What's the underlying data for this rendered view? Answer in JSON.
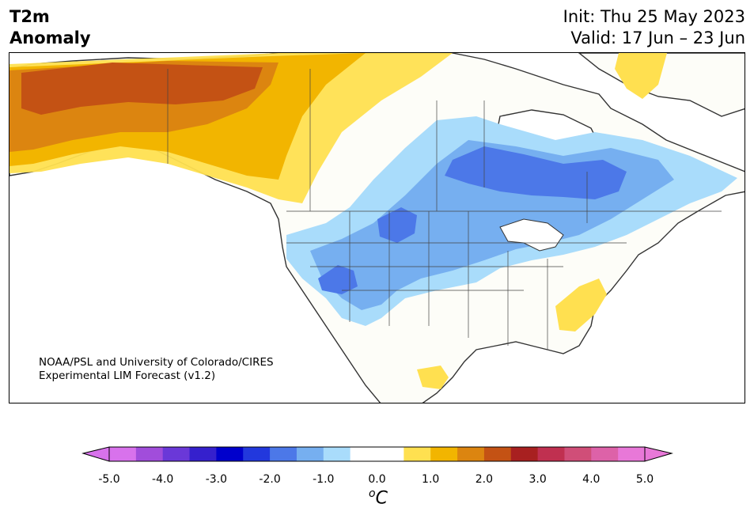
{
  "title": {
    "line1": "T2m",
    "line2": "Anomaly"
  },
  "init": "Init: Thu 25 May 2023",
  "valid": "Valid: 17 Jun – 23 Jun",
  "credit": {
    "line1": "NOAA/PSL and University of Colorado/CIRES",
    "line2": "Experimental LIM Forecast (v1.2)"
  },
  "colorbar": {
    "ticks": [
      "-5.0",
      "-4.0",
      "-3.0",
      "-2.0",
      "-1.0",
      "0.0",
      "1.0",
      "2.0",
      "3.0",
      "4.0",
      "5.0"
    ],
    "colors": [
      "#d872ec",
      "#a14ddb",
      "#6a38d8",
      "#3520cd",
      "#0000cc",
      "#2238dd",
      "#4c78e8",
      "#76aff0",
      "#a9dcfb",
      "#ffffff",
      "#ffffff",
      "#ffe050",
      "#f2b500",
      "#dc8510",
      "#c45214",
      "#a82020",
      "#c03050",
      "#d04e78",
      "#dd62a8",
      "#e878d8"
    ],
    "under_color": "#d872ec",
    "over_color": "#e878d8",
    "unit_base": "C",
    "unit_sup": "o"
  },
  "palette": {
    "land": "#fdfdf8",
    "coast": "#333333",
    "warm1": "#ffe050",
    "warm2": "#f2b500",
    "warm3": "#dc8510",
    "warm4": "#c45214",
    "cool1": "#a9dcfb",
    "cool2": "#76aff0",
    "cool3": "#4c78e8"
  }
}
